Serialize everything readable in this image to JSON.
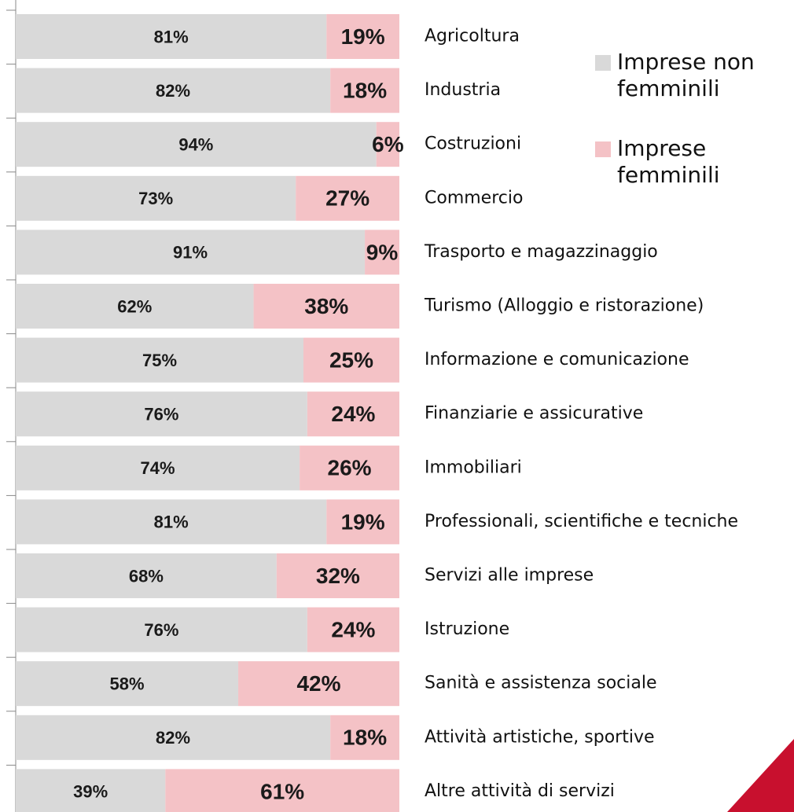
{
  "chart_data": {
    "type": "stacked-barh",
    "categories": [
      "Agricoltura",
      "Industria",
      "Costruzioni",
      "Commercio",
      "Trasporto e magazzinaggio",
      "Turismo (Alloggio e ristorazione)",
      "Informazione e comunicazione",
      "Finanziarie e assicurative",
      "Immobiliari",
      "Professionali, scientifiche e tecniche",
      "Servizi alle imprese",
      "Istruzione",
      "Sanità e assistenza sociale",
      "Attività artistiche, sportive",
      "Altre attività di servizi"
    ],
    "series": [
      {
        "name": "Imprese non femminili",
        "color": "#d9d9d9",
        "values": [
          81,
          82,
          94,
          73,
          91,
          62,
          75,
          76,
          74,
          81,
          68,
          76,
          58,
          82,
          39
        ],
        "value_labels": [
          "81%",
          "82%",
          "94%",
          "73%",
          "91%",
          "62%",
          "75%",
          "76%",
          "74%",
          "81%",
          "68%",
          "76%",
          "58%",
          "82%",
          "39%"
        ]
      },
      {
        "name": "Imprese femminili",
        "color": "#f4c2c6",
        "values": [
          19,
          18,
          6,
          27,
          9,
          38,
          25,
          24,
          26,
          19,
          32,
          24,
          42,
          18,
          61
        ],
        "value_labels": [
          "19%",
          "18%",
          "6%",
          "27%",
          "9%",
          "38%",
          "25%",
          "24%",
          "26%",
          "19%",
          "32%",
          "24%",
          "42%",
          "18%",
          "61%"
        ]
      }
    ],
    "xlim": [
      0,
      100
    ]
  }
}
